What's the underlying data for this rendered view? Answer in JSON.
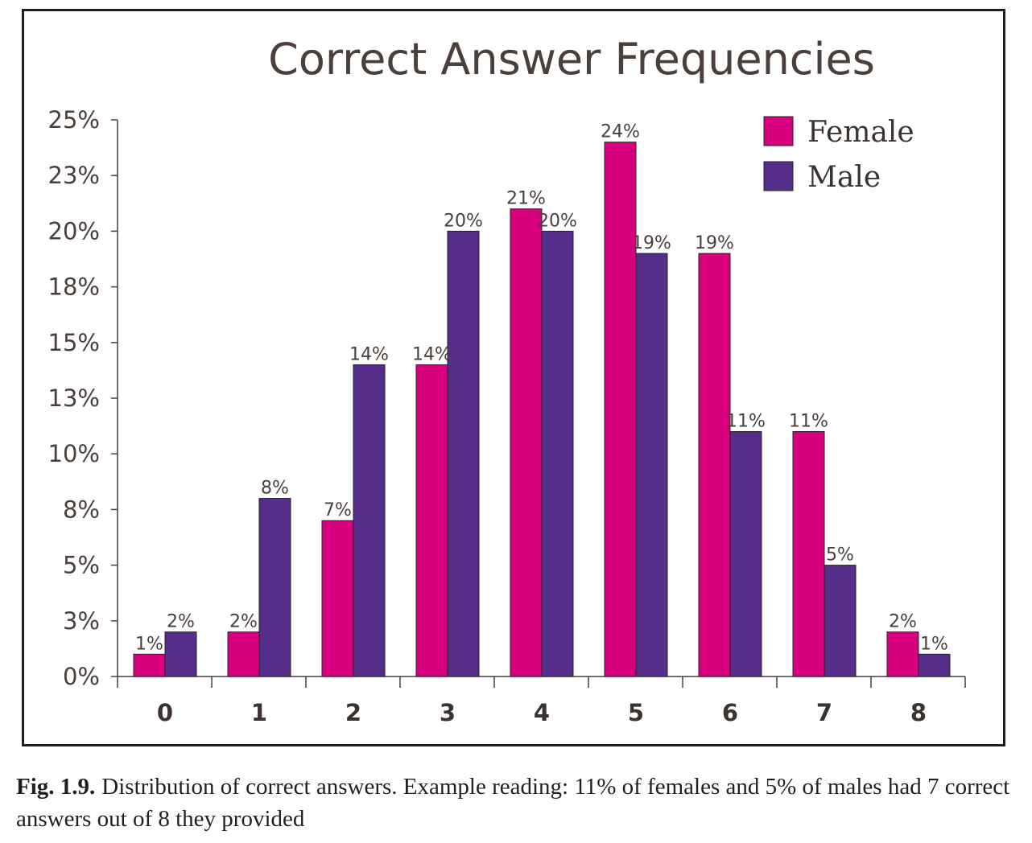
{
  "chart_data": {
    "type": "bar",
    "title": "Correct Answer Frequencies",
    "xlabel": "",
    "ylabel": "",
    "categories": [
      "0",
      "1",
      "2",
      "3",
      "4",
      "5",
      "6",
      "7",
      "8"
    ],
    "series": [
      {
        "name": "Female",
        "color": "#d8007f",
        "values": [
          1,
          2,
          7,
          14,
          21,
          24,
          19,
          11,
          2
        ],
        "labels": [
          "1%",
          "2%",
          "7%",
          "14%",
          "21%",
          "24%",
          "19%",
          "11%",
          "2%"
        ]
      },
      {
        "name": "Male",
        "color": "#552d8a",
        "values": [
          2,
          8,
          14,
          20,
          20,
          19,
          11,
          5,
          1
        ],
        "labels": [
          "2%",
          "8%",
          "14%",
          "20%",
          "20%",
          "19%",
          "11%",
          "5%",
          "1%"
        ]
      }
    ],
    "ylim": [
      0,
      25
    ],
    "yticks": [
      0,
      2.5,
      5,
      7.5,
      10,
      12.5,
      15,
      17.5,
      20,
      22.5,
      25
    ],
    "ytick_labels": [
      "0%",
      "3%",
      "5%",
      "8%",
      "10%",
      "13%",
      "15%",
      "18%",
      "20%",
      "23%",
      "25%"
    ],
    "grid": false,
    "legend_position": "top-right"
  },
  "caption": {
    "label": "Fig. 1.9.",
    "text": "Distribution of correct answers. Example reading: 11% of females and 5% of males had 7 correct answers out of 8 they provided"
  }
}
